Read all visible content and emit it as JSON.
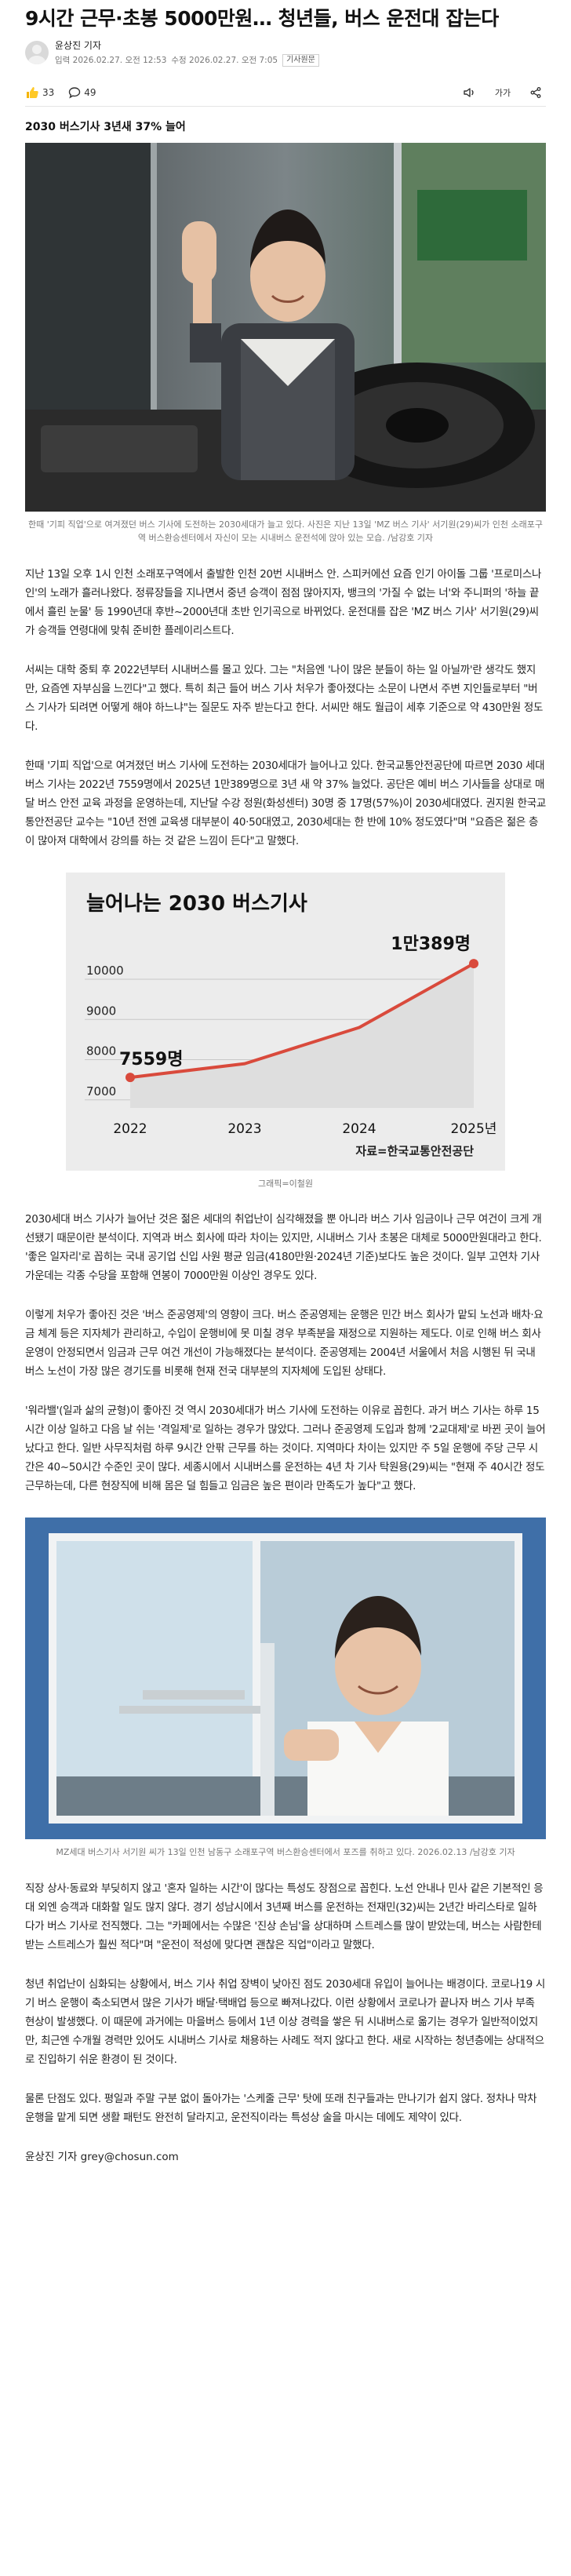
{
  "article": {
    "headline": "9시간 근무·초봉 5000만원… 청년들, 버스 운전대 잡는다",
    "reporter": "윤상진 기자",
    "published": "입력 2026.02.27. 오전 12:53",
    "updated": "수정 2026.02.27. 오전 7:05",
    "reporter_tag": "기사원문",
    "subheading": "2030 버스기사 3년새 37% 늘어",
    "footer_byline": "윤상진 기자 grey@chosun.com"
  },
  "actions": {
    "like_count": "33",
    "comment_count": "49",
    "font_label": "가가"
  },
  "photos": {
    "photo1_caption": "한때 '기피 직업'으로 여겨졌던 버스 기사에 도전하는 2030세대가 늘고 있다. 사진은 지난 13일 'MZ 버스 기사' 서기원(29)씨가 인천 소래포구역 버스환승센터에서 자신이 모는 시내버스 운전석에 앉아 있는 모습. /남강호 기자",
    "photo2_caption": "MZ세대 버스기사 서기원 씨가 13일 인천 남동구 소래포구역 버스환승센터에서 포즈를 취하고 있다. 2026.02.13 /남강호 기자"
  },
  "body": {
    "p1": "지난 13일 오후 1시 인천 소래포구역에서 출발한 인천 20번 시내버스 안. 스피커에선 요즘 인기 아이돌 그룹 '프로미스나인'의 노래가 흘러나왔다. 정류장들을 지나면서 중년 승객이 점점 많아지자, 뱅크의 '가질 수 없는 너'와 주니퍼의 '하늘 끝에서 흘린 눈물' 등 1990년대 후반~2000년대 초반 인기곡으로 바뀌었다. 운전대를 잡은 'MZ 버스 기사' 서기원(29)씨가 승객들 연령대에 맞춰 준비한 플레이리스트다.",
    "p2": "서씨는 대학 중퇴 후 2022년부터 시내버스를 몰고 있다. 그는 \"처음엔 '나이 많은 분들이 하는 일 아닐까'란 생각도 했지만, 요즘엔 자부심을 느낀다\"고 했다. 특히 최근 들어 버스 기사 처우가 좋아졌다는 소문이 나면서 주변 지인들로부터 \"버스 기사가 되려면 어떻게 해야 하느냐\"는 질문도 자주 받는다고 한다. 서씨만 해도 월급이 세후 기준으로 약 430만원 정도다.",
    "p3": "한때 '기피 직업'으로 여겨졌던 버스 기사에 도전하는 2030세대가 늘어나고 있다. 한국교통안전공단에 따르면 2030 세대 버스 기사는 2022년 7559명에서 2025년 1만389명으로 3년 새 약 37% 늘었다. 공단은 예비 버스 기사들을 상대로 매달 버스 안전 교육 과정을 운영하는데, 지난달 수강 정원(화성센터) 30명 중 17명(57%)이 2030세대였다. 권지원 한국교통안전공단 교수는 \"10년 전엔 교육생 대부분이 40·50대였고, 2030세대는 한 반에 10% 정도였다\"며 \"요즘은 젊은 층이 많아져 대학에서 강의를 하는 것 같은 느낌이 든다\"고 말했다.",
    "p4": "2030세대 버스 기사가 늘어난 것은 젊은 세대의 취업난이 심각해졌을 뿐 아니라 버스 기사 임금이나 근무 여건이 크게 개선됐기 때문이란 분석이다. 지역과 버스 회사에 따라 차이는 있지만, 시내버스 기사 초봉은 대체로 5000만원대라고 한다. '좋은 일자리'로 꼽히는 국내 공기업 신입 사원 평균 임금(4180만원·2024년 기준)보다도 높은 것이다. 일부 고연차 기사 가운데는 각종 수당을 포함해 연봉이 7000만원 이상인 경우도 있다.",
    "p5": "이렇게 처우가 좋아진 것은 '버스 준공영제'의 영향이 크다. 버스 준공영제는 운행은 민간 버스 회사가 맡되 노선과 배차·요금 체계 등은 지자체가 관리하고, 수입이 운행비에 못 미칠 경우 부족분을 재정으로 지원하는 제도다. 이로 인해 버스 회사 운영이 안정되면서 임금과 근무 여건 개선이 가능해졌다는 분석이다. 준공영제는 2004년 서울에서 처음 시행된 뒤 국내 버스 노선이 가장 많은 경기도를 비롯해 현재 전국 대부분의 지자체에 도입된 상태다.",
    "p6": "'워라밸'(일과 삶의 균형)이 좋아진 것 역시 2030세대가 버스 기사에 도전하는 이유로 꼽힌다. 과거 버스 기사는 하루 15시간 이상 일하고 다음 날 쉬는 '격일제'로 일하는 경우가 많았다. 그러나 준공영제 도입과 함께 '2교대제'로 바뀐 곳이 늘어났다고 한다. 일반 사무직처럼 하루 9시간 안팎 근무를 하는 것이다. 지역마다 차이는 있지만 주 5일 운행에 주당 근무 시간은 40~50시간 수준인 곳이 많다. 세종시에서 시내버스를 운전하는 4년 차 기사 탁원용(29)씨는 \"현재 주 40시간 정도 근무하는데, 다른 현장직에 비해 몸은 덜 힘들고 임금은 높은 편이라 만족도가 높다\"고 했다.",
    "p7": "직장 상사·동료와 부딪히지 않고 '혼자 일하는 시간'이 많다는 특성도 장점으로 꼽힌다. 노선 안내나 민사 같은 기본적인 응대 외엔 승객과 대화할 일도 많지 않다. 경기 성남시에서 3년째 버스를 운전하는 전재민(32)씨는 2년간 바리스타로 일하다가 버스 기사로 전직했다. 그는 \"카페에서는 수많은 '진상 손님'을 상대하며 스트레스를 많이 받았는데, 버스는 사람한테 받는 스트레스가 훨씬 적다\"며 \"운전이 적성에 맞다면 괜찮은 직업\"이라고 말했다.",
    "p8": "청년 취업난이 심화되는 상황에서, 버스 기사 취업 장벽이 낮아진 점도 2030세대 유입이 늘어나는 배경이다. 코로나19 시기 버스 운행이 축소되면서 많은 기사가 배달·택배업 등으로 빠져나갔다. 이런 상황에서 코로나가 끝나자 버스 기사 부족 현상이 발생했다. 이 때문에 과거에는 마을버스 등에서 1년 이상 경력을 쌓은 뒤 시내버스로 옮기는 경우가 일반적이었지만, 최근엔 수개월 경력만 있어도 시내버스 기사로 채용하는 사례도 적지 않다고 한다. 새로 시작하는 청년층에는 상대적으로 진입하기 쉬운 환경이 된 것이다.",
    "p9": "물론 단점도 있다. 평일과 주말 구분 없이 돌아가는 '스케줄 근무' 탓에 또래 친구들과는 만나기가 쉽지 않다. 정차나 막차 운행을 맡게 되면 생활 패턴도 완전히 달라지고, 운전직이라는 특성상 술을 마시는 데에도 제약이 있다."
  },
  "chart_data": {
    "type": "area",
    "title": "늘어나는 2030 버스기사",
    "x": [
      "2022",
      "2023",
      "2024",
      "2025년"
    ],
    "values": [
      7559,
      7900,
      8800,
      10389
    ],
    "ylim": [
      6800,
      10800
    ],
    "ytick_labels": [
      "7000",
      "8000",
      "9000",
      "10000"
    ],
    "start_label": "7559명",
    "end_label": "1만389명",
    "source": "자료=한국교통안전공단",
    "credit": "그래픽=이철원",
    "grid": true,
    "accent": "#d94a3c"
  },
  "colors": {
    "accent": "#d94a3c",
    "text": "#222222",
    "muted": "#777777"
  }
}
